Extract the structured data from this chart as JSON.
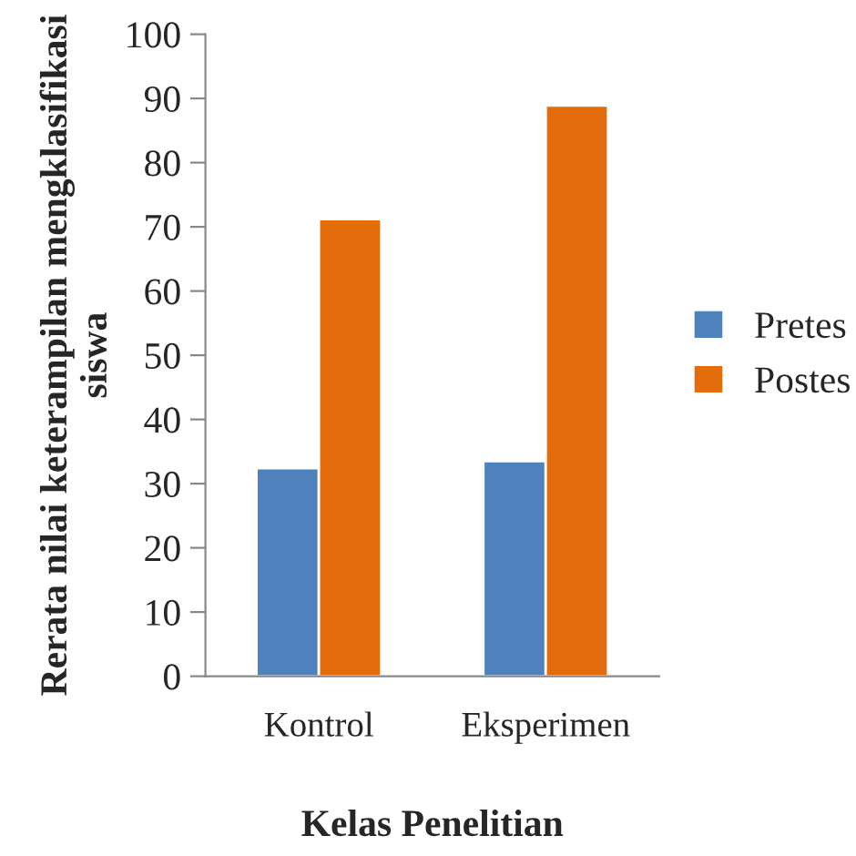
{
  "chart_data": {
    "type": "bar",
    "xlabel": "Kelas Penelitian",
    "ylabel": "Rerata nilai keterampilan mengklasifikasi siswa",
    "categories": [
      "Kontrol",
      "Eksperimen"
    ],
    "series": [
      {
        "name": "Pretes",
        "color": "#4f81bd",
        "values": [
          32.4,
          33.5
        ]
      },
      {
        "name": "Postes",
        "color": "#e46c0a",
        "values": [
          71.2,
          88.9
        ]
      }
    ],
    "ylim": [
      0,
      100
    ],
    "yticks": [
      0,
      10,
      20,
      30,
      40,
      50,
      60,
      70,
      80,
      90,
      100
    ],
    "grid": false,
    "legend": "right"
  }
}
